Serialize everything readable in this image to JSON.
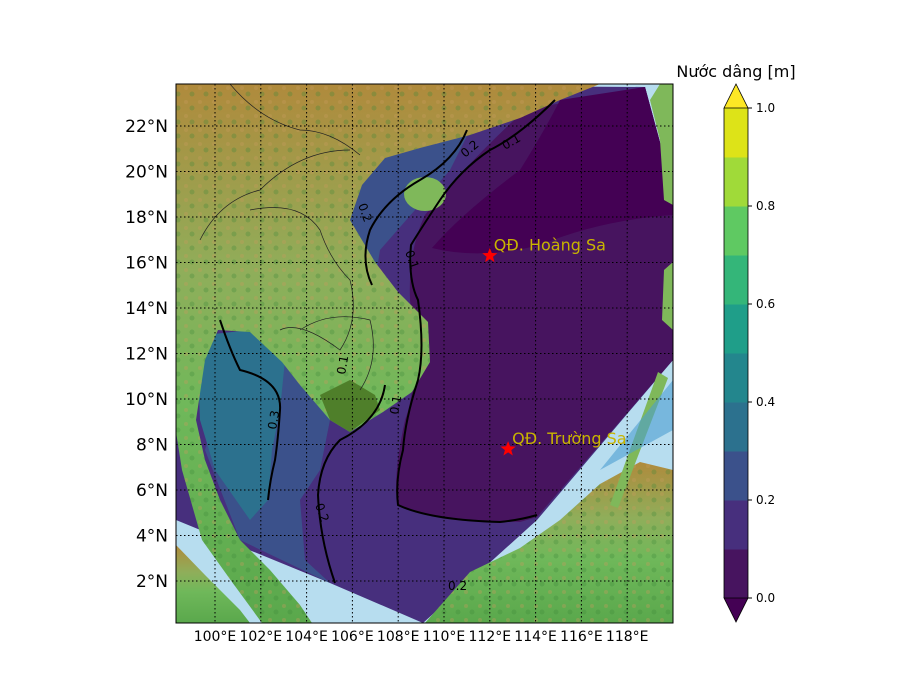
{
  "colorbar": {
    "title": "Nước dâng [m]",
    "ticks": [
      "0.0",
      "0.2",
      "0.4",
      "0.6",
      "0.8",
      "1.0"
    ],
    "tick_values": [
      0,
      0.2,
      0.4,
      0.6,
      0.8,
      1.0
    ],
    "range": [
      0,
      1.0
    ],
    "levels": [
      0,
      0.1,
      0.2,
      0.3,
      0.4,
      0.5,
      0.6,
      0.7,
      0.8,
      0.9,
      1.0
    ],
    "colors": [
      "#47145f",
      "#472f7d",
      "#3b518b",
      "#2c718e",
      "#23868d",
      "#1f9e89",
      "#34b679",
      "#5fc962",
      "#a0da39",
      "#dde318"
    ],
    "under_color": "#440154",
    "over_color": "#fde725",
    "extend": "both"
  },
  "map": {
    "lat_labels": [
      "2°N",
      "4°N",
      "6°N",
      "8°N",
      "10°N",
      "12°N",
      "14°N",
      "16°N",
      "18°N",
      "20°N",
      "22°N"
    ],
    "lon_labels": [
      "100°E",
      "102°E",
      "104°E",
      "106°E",
      "108°E",
      "110°E",
      "112°E",
      "114°E",
      "116°E",
      "118°E"
    ],
    "contour_labels": [
      "0.1",
      "0.2",
      "0.1",
      "0.2",
      "0.1",
      "0.1",
      "0.3",
      "0.2",
      "0.2"
    ],
    "markers": [
      {
        "name": "QĐ. Hoàng Sa",
        "lon": 112.0,
        "lat": 16.3,
        "color": "#ff0000",
        "label_color": "#c8b400"
      },
      {
        "name": "QĐ. Trường Sa",
        "lon": 112.8,
        "lat": 7.8,
        "color": "#ff0000",
        "label_color": "#c8b400"
      }
    ]
  }
}
